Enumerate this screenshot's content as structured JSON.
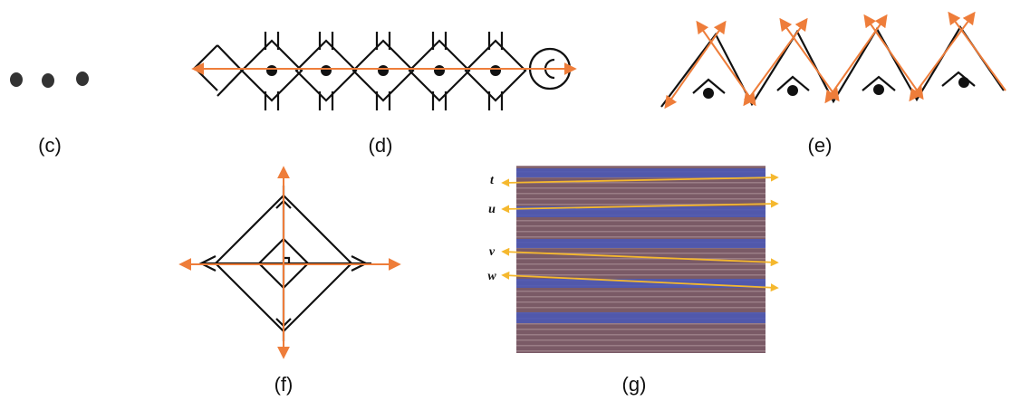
{
  "labels": [
    "(c)",
    "(d)",
    "(e)",
    "(f)",
    "(g)"
  ],
  "lines": [
    "t",
    "u",
    "v",
    "w"
  ]
}
